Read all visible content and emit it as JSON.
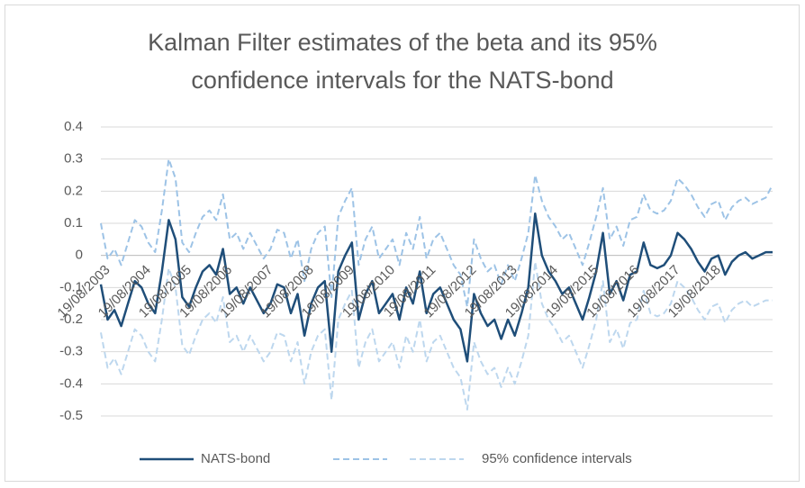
{
  "chart_data": {
    "type": "line",
    "title": "Kalman Filter estimates of the beta and its 95% confidence intervals for the NATS-bond",
    "categories": [
      "19/08/2003",
      null,
      null,
      null,
      null,
      null,
      "19/08/2004",
      null,
      null,
      null,
      null,
      null,
      "19/08/2005",
      null,
      null,
      null,
      null,
      null,
      "19/08/2006",
      null,
      null,
      null,
      null,
      null,
      "19/08/2007",
      null,
      null,
      null,
      null,
      null,
      "19/08/2008",
      null,
      null,
      null,
      null,
      null,
      "19/08/2009",
      null,
      null,
      null,
      null,
      null,
      "19/08/2010",
      null,
      null,
      null,
      null,
      null,
      "19/08/2011",
      null,
      null,
      null,
      null,
      null,
      "19/08/2012",
      null,
      null,
      null,
      null,
      null,
      "19/08/2013",
      null,
      null,
      null,
      null,
      null,
      "19/08/2014",
      null,
      null,
      null,
      null,
      null,
      "19/08/2015",
      null,
      null,
      null,
      null,
      null,
      "19/08/2016",
      null,
      null,
      null,
      null,
      null,
      "19/08/2017",
      null,
      null,
      null,
      null,
      null,
      "19/08/2018",
      null,
      null,
      null,
      null,
      null,
      null,
      null,
      null,
      null
    ],
    "series": [
      {
        "name": "NATS-bond",
        "color": "#1f4e79",
        "dash": false,
        "values": [
          -0.09,
          -0.2,
          -0.17,
          -0.22,
          -0.15,
          -0.08,
          -0.1,
          -0.15,
          -0.18,
          -0.05,
          0.11,
          0.05,
          -0.13,
          -0.16,
          -0.1,
          -0.05,
          -0.03,
          -0.06,
          0.02,
          -0.12,
          -0.1,
          -0.15,
          -0.1,
          -0.14,
          -0.18,
          -0.15,
          -0.09,
          -0.1,
          -0.18,
          -0.12,
          -0.25,
          -0.15,
          -0.1,
          -0.08,
          -0.3,
          -0.05,
          0.0,
          0.04,
          -0.2,
          -0.12,
          -0.08,
          -0.18,
          -0.15,
          -0.12,
          -0.2,
          -0.1,
          -0.15,
          -0.05,
          -0.18,
          -0.12,
          -0.1,
          -0.15,
          -0.2,
          -0.23,
          -0.33,
          -0.12,
          -0.18,
          -0.22,
          -0.2,
          -0.26,
          -0.2,
          -0.25,
          -0.18,
          -0.1,
          0.13,
          0.0,
          -0.05,
          -0.08,
          -0.12,
          -0.1,
          -0.15,
          -0.2,
          -0.13,
          -0.05,
          0.07,
          -0.12,
          -0.08,
          -0.14,
          -0.06,
          -0.05,
          0.04,
          -0.03,
          -0.04,
          -0.03,
          0.0,
          0.07,
          0.05,
          0.02,
          -0.02,
          -0.05,
          -0.01,
          0.0,
          -0.06,
          -0.02,
          0.0,
          0.01,
          -0.01,
          0.0,
          0.01,
          0.01
        ]
      },
      {
        "name": null,
        "color": "#9dc3e6",
        "dash": true,
        "values": [
          0.1,
          -0.01,
          0.02,
          -0.03,
          0.04,
          0.11,
          0.09,
          0.04,
          0.01,
          0.14,
          0.3,
          0.24,
          0.04,
          0.01,
          0.07,
          0.12,
          0.14,
          0.11,
          0.19,
          0.05,
          0.07,
          0.02,
          0.07,
          0.03,
          -0.01,
          0.02,
          0.08,
          0.07,
          -0.01,
          0.05,
          -0.08,
          0.02,
          0.07,
          0.09,
          -0.13,
          0.12,
          0.17,
          0.21,
          -0.03,
          0.05,
          0.09,
          -0.01,
          0.02,
          0.05,
          -0.03,
          0.07,
          0.02,
          0.12,
          -0.01,
          0.05,
          0.07,
          0.02,
          -0.03,
          -0.06,
          -0.16,
          0.05,
          -0.01,
          -0.05,
          -0.03,
          -0.09,
          -0.03,
          -0.08,
          -0.01,
          0.07,
          0.25,
          0.17,
          0.12,
          0.09,
          0.05,
          0.07,
          0.02,
          -0.03,
          0.04,
          0.12,
          0.21,
          0.05,
          0.09,
          0.03,
          0.11,
          0.12,
          0.19,
          0.14,
          0.13,
          0.14,
          0.17,
          0.24,
          0.22,
          0.19,
          0.15,
          0.12,
          0.16,
          0.17,
          0.11,
          0.15,
          0.17,
          0.18,
          0.16,
          0.17,
          0.18,
          0.22
        ]
      },
      {
        "name": "95% confidence intervals",
        "color": "#bdd7ee",
        "dash": true,
        "values": [
          -0.24,
          -0.35,
          -0.32,
          -0.37,
          -0.3,
          -0.23,
          -0.25,
          -0.3,
          -0.33,
          -0.2,
          -0.04,
          -0.1,
          -0.28,
          -0.31,
          -0.25,
          -0.2,
          -0.18,
          -0.21,
          -0.13,
          -0.27,
          -0.25,
          -0.3,
          -0.25,
          -0.29,
          -0.33,
          -0.3,
          -0.24,
          -0.25,
          -0.33,
          -0.27,
          -0.4,
          -0.3,
          -0.25,
          -0.23,
          -0.45,
          -0.2,
          -0.15,
          -0.11,
          -0.35,
          -0.27,
          -0.23,
          -0.33,
          -0.3,
          -0.27,
          -0.35,
          -0.25,
          -0.3,
          -0.2,
          -0.33,
          -0.27,
          -0.25,
          -0.3,
          -0.35,
          -0.38,
          -0.48,
          -0.27,
          -0.33,
          -0.37,
          -0.35,
          -0.41,
          -0.35,
          -0.4,
          -0.33,
          -0.25,
          -0.02,
          -0.15,
          -0.2,
          -0.23,
          -0.27,
          -0.25,
          -0.3,
          -0.35,
          -0.28,
          -0.2,
          -0.08,
          -0.27,
          -0.23,
          -0.29,
          -0.21,
          -0.2,
          -0.11,
          -0.18,
          -0.19,
          -0.18,
          -0.15,
          -0.08,
          -0.1,
          -0.13,
          -0.17,
          -0.2,
          -0.16,
          -0.15,
          -0.21,
          -0.17,
          -0.15,
          -0.14,
          -0.16,
          -0.15,
          -0.14,
          -0.14
        ]
      }
    ],
    "ylim": [
      -0.5,
      0.4
    ],
    "yticks": [
      -0.5,
      -0.4,
      -0.3,
      -0.2,
      -0.1,
      0,
      0.1,
      0.2,
      0.3,
      0.4
    ],
    "grid": true,
    "legend": "bottom"
  }
}
